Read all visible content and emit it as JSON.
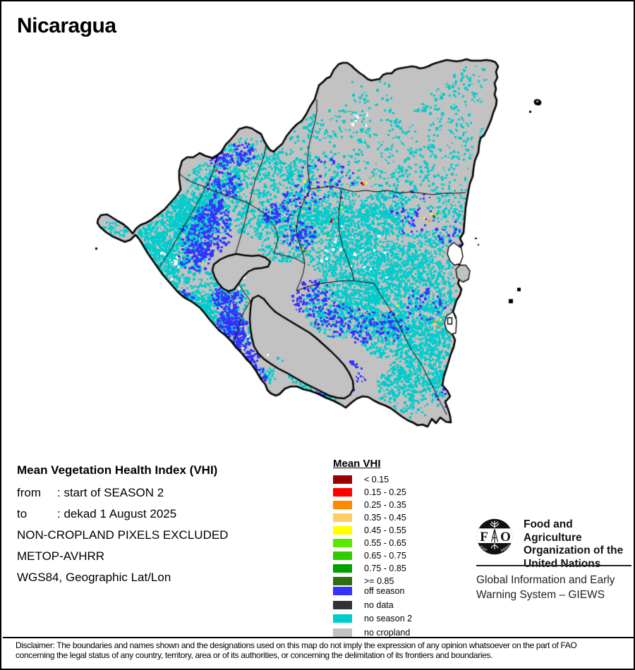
{
  "title": "Nicaragua",
  "map": {
    "land_color": "#c2c2c2",
    "water_color": "#ffffff",
    "border_color": "#000000"
  },
  "info": {
    "heading": "Mean Vegetation Health Index (VHI)",
    "rows": [
      {
        "label": "from",
        "value": ": start of SEASON 2"
      },
      {
        "label": "to",
        "value": ": dekad 1 August 2025"
      }
    ],
    "lines": [
      "NON-CROPLAND PIXELS EXCLUDED",
      "METOP-AVHRR",
      "WGS84, Geographic Lat/Lon"
    ]
  },
  "legend": {
    "title": "Mean VHI",
    "classes": [
      {
        "label": "< 0.15",
        "color": "#990000"
      },
      {
        "label": "0.15 - 0.25",
        "color": "#ff0000"
      },
      {
        "label": "0.25 - 0.35",
        "color": "#ff8a00"
      },
      {
        "label": "0.35 - 0.45",
        "color": "#ffcc66"
      },
      {
        "label": "0.45 - 0.55",
        "color": "#ffff00"
      },
      {
        "label": "0.55 - 0.65",
        "color": "#55ea00"
      },
      {
        "label": "0.65 - 0.75",
        "color": "#2fcc00"
      },
      {
        "label": "0.75 - 0.85",
        "color": "#00a000"
      },
      {
        "label": ">= 0.85",
        "color": "#2d6e10"
      }
    ],
    "extra_classes": [
      {
        "label": "off season",
        "color": "#3333ff"
      },
      {
        "label": "no data",
        "color": "#333333"
      },
      {
        "label": "no season 2",
        "color": "#00cccc"
      },
      {
        "label": "no cropland",
        "color": "#c2c2c2"
      }
    ]
  },
  "footer": {
    "fao_logo_text": "FAO",
    "fao_motto": [
      "FIAT",
      "PANIS"
    ],
    "fao_name_lines": [
      "Food and Agriculture",
      "Organization of the",
      "United Nations"
    ],
    "giews_lines": [
      "Global Information and Early",
      "Warning System – GIEWS"
    ]
  },
  "disclaimer": {
    "line1": "Disclaimer: The boundaries and names shown and the designations used on this map do not imply the expression of any opinion whatsoever on the part of FAO",
    "line2": "concerning the legal status of any country, territory, area or of its authorities, or concerning the delimitation of its frontiers and boundaries."
  }
}
